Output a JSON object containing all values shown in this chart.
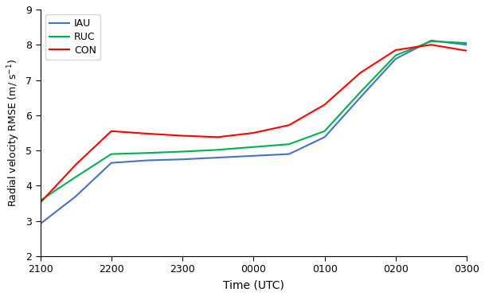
{
  "x_labels": [
    "2100",
    "2200",
    "2300",
    "0000",
    "0100",
    "0200",
    "0300"
  ],
  "x_ticks": [
    0,
    2,
    4,
    6,
    8,
    10,
    12
  ],
  "IAU": {
    "x": [
      0,
      1,
      2,
      3,
      4,
      5,
      6,
      7,
      8,
      9,
      10,
      11,
      12
    ],
    "y": [
      2.92,
      3.7,
      4.65,
      4.72,
      4.75,
      4.8,
      4.85,
      4.9,
      5.38,
      6.5,
      7.6,
      8.12,
      8.0
    ]
  },
  "RUC": {
    "x": [
      0,
      1,
      2,
      3,
      4,
      5,
      6,
      7,
      8,
      9,
      10,
      11,
      12
    ],
    "y": [
      3.58,
      4.25,
      4.9,
      4.93,
      4.97,
      5.02,
      5.1,
      5.18,
      5.55,
      6.65,
      7.7,
      8.1,
      8.05
    ]
  },
  "CON": {
    "x": [
      0,
      1,
      2,
      3,
      4,
      5,
      6,
      7,
      8,
      9,
      10,
      11,
      12
    ],
    "y": [
      3.52,
      4.6,
      5.55,
      5.48,
      5.42,
      5.38,
      5.5,
      5.72,
      6.3,
      7.2,
      7.85,
      8.0,
      7.83
    ]
  },
  "IAU_color": "#4472C4",
  "RUC_color": "#00B050",
  "CON_color": "#FF0000",
  "ylabel": "Radial velocity RMSE (m/ s⁻¹)",
  "xlabel": "Time (UTC)",
  "ylim": [
    2,
    9
  ],
  "yticks": [
    2,
    3,
    4,
    5,
    6,
    7,
    8,
    9
  ],
  "legend_labels": [
    "IAU",
    "RUC",
    "CON"
  ],
  "linewidth": 1.5,
  "figsize": [
    6.09,
    3.72
  ],
  "dpi": 100
}
